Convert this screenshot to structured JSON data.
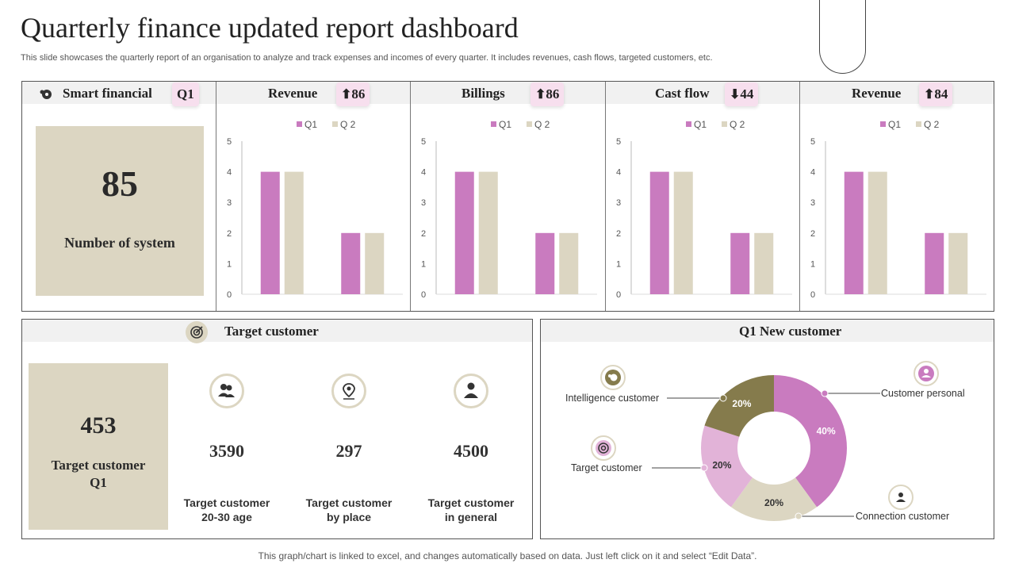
{
  "header": {
    "title": "Quarterly finance updated report dashboard",
    "subtitle": "This slide showcases the quarterly report of an organisation  to analyze and track expenses and incomes of every quarter. It includes revenues, cash flows, targeted customers, etc."
  },
  "top_panel": {
    "smart_label": "Smart financial",
    "smart_badge": "Q1",
    "big_value": "85",
    "big_label": "Number of system",
    "headers": [
      {
        "label": "Revenue",
        "arrow": "⬆",
        "value": "86"
      },
      {
        "label": "Billings",
        "arrow": "⬆",
        "value": "86"
      },
      {
        "label": "Cast flow",
        "arrow": "⬇",
        "value": "44"
      },
      {
        "label": "Revenue",
        "arrow": "⬆",
        "value": "84"
      }
    ]
  },
  "target_panel": {
    "title": "Target customer",
    "big_value": "453",
    "big_label_1": "Target customer",
    "big_label_2": "Q1",
    "items": [
      {
        "icon": "users-icon",
        "value": "3590",
        "label_1": "Target customer",
        "label_2": "20-30 age"
      },
      {
        "icon": "location-pin-icon",
        "value": "297",
        "label_1": "Target customer",
        "label_2": "by place"
      },
      {
        "icon": "person-icon",
        "value": "4500",
        "label_1": "Target customer",
        "label_2": "in general"
      }
    ]
  },
  "new_customer_panel": {
    "title": "Q1 New customer",
    "labels": {
      "intelligence": "Intelligence  customer",
      "personal": "Customer personal",
      "target": "Target  customer",
      "connection": "Connection  customer"
    }
  },
  "footer": "This graph/chart is linked to excel,  and changes automatically based on data. Just left click on it and select “Edit Data”.",
  "colors": {
    "q1": "#c97bbf",
    "q2": "#dcd6c2",
    "olive": "#857b4c",
    "light_pink": "#e2b3d8",
    "beige": "#dcd6c2"
  },
  "chart_data": [
    {
      "type": "bar",
      "categories": [
        "",
        ""
      ],
      "series": [
        {
          "name": "Q1",
          "values": [
            4,
            2
          ]
        },
        {
          "name": "Q 2",
          "values": [
            4,
            2
          ]
        }
      ],
      "ylim": [
        0,
        5
      ],
      "yticks": [
        "0",
        "1",
        "2",
        "3",
        "4",
        "5"
      ],
      "legend": "top"
    },
    {
      "type": "bar",
      "categories": [
        "",
        ""
      ],
      "series": [
        {
          "name": "Q1",
          "values": [
            4,
            2
          ]
        },
        {
          "name": "Q 2",
          "values": [
            4,
            2
          ]
        }
      ],
      "ylim": [
        0,
        5
      ],
      "yticks": [
        "0",
        "1",
        "2",
        "3",
        "4",
        "5"
      ],
      "legend": "top"
    },
    {
      "type": "bar",
      "categories": [
        "",
        ""
      ],
      "series": [
        {
          "name": "Q1",
          "values": [
            4,
            2
          ]
        },
        {
          "name": "Q 2",
          "values": [
            4,
            2
          ]
        }
      ],
      "ylim": [
        0,
        5
      ],
      "yticks": [
        "0",
        "1",
        "2",
        "3",
        "4",
        "5"
      ],
      "legend": "top"
    },
    {
      "type": "bar",
      "categories": [
        "",
        ""
      ],
      "series": [
        {
          "name": "Q1",
          "values": [
            4,
            2
          ]
        },
        {
          "name": "Q 2",
          "values": [
            4,
            2
          ]
        }
      ],
      "ylim": [
        0,
        5
      ],
      "yticks": [
        "0",
        "1",
        "2",
        "3",
        "4",
        "5"
      ],
      "legend": "top"
    },
    {
      "type": "pie",
      "donut": true,
      "slices": [
        {
          "value": 40,
          "label": "40%",
          "color": "#c97bbf"
        },
        {
          "value": 20,
          "label": "20%",
          "color": "#dcd6c2"
        },
        {
          "value": 20,
          "label": "20%",
          "color": "#e2b3d8"
        },
        {
          "value": 20,
          "label": "20%",
          "color": "#857b4c"
        }
      ]
    }
  ]
}
